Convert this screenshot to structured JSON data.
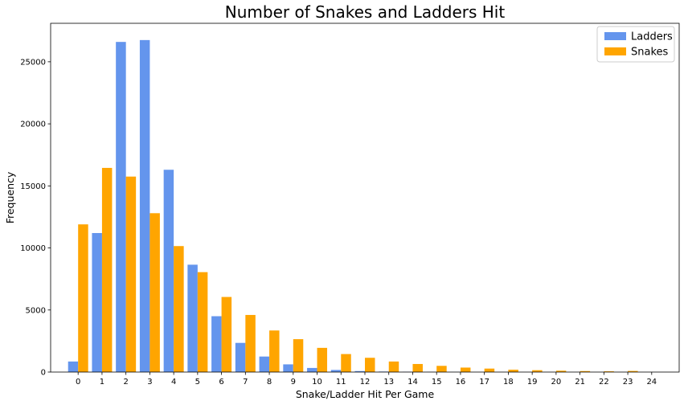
{
  "chart_data": {
    "type": "bar",
    "title": "Number of Snakes and Ladders Hit",
    "xlabel": "Snake/Ladder Hit Per Game",
    "ylabel": "Frequency",
    "categories": [
      "0",
      "1",
      "2",
      "3",
      "4",
      "5",
      "6",
      "7",
      "8",
      "9",
      "10",
      "11",
      "12",
      "13",
      "14",
      "15",
      "16",
      "17",
      "18",
      "19",
      "20",
      "21",
      "22",
      "23",
      "24"
    ],
    "ylim": [
      0,
      28100
    ],
    "yticks": [
      0,
      5000,
      10000,
      15000,
      20000,
      25000
    ],
    "grid": false,
    "legend_position": "top-right",
    "series": [
      {
        "name": "Ladders",
        "color": "#6495ED",
        "values": [
          850,
          11200,
          26600,
          26750,
          16300,
          8650,
          4500,
          2350,
          1250,
          620,
          330,
          170,
          80,
          40,
          20,
          10,
          5,
          0,
          0,
          0,
          0,
          0,
          0,
          0,
          0
        ]
      },
      {
        "name": "Snakes",
        "color": "#FFA500",
        "values": [
          11900,
          16450,
          15750,
          12800,
          10150,
          8050,
          6050,
          4600,
          3350,
          2650,
          1950,
          1450,
          1150,
          850,
          650,
          500,
          360,
          280,
          190,
          150,
          110,
          80,
          60,
          90,
          0
        ]
      }
    ]
  }
}
